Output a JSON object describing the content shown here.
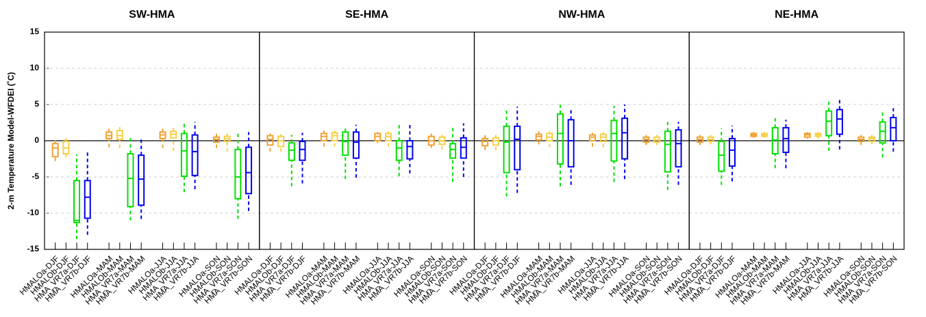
{
  "chart_data": [
    {
      "type": "box",
      "title": "SW-HMA",
      "y_label": "2-m Temperature Model-WFDEI (˚C)",
      "ylim": [
        -15,
        15
      ],
      "yticks": [
        -15,
        -10,
        -5,
        0,
        5,
        10,
        15
      ],
      "grid": true,
      "hline": 0,
      "box_colors": [
        "#f0a030",
        "#f5cf45",
        "#00e000",
        "#0000ee"
      ],
      "categories": [
        "HMALOa-DJF",
        "HMALOb-DJF",
        "HMA_VR7a-DJF",
        "HMA_VR7b-DJF",
        "HMALOa-MAM",
        "HMALOb-MAM",
        "HMA_VR7a-MAM",
        "HMA_VR7b-MAM",
        "HMALOa-JJA",
        "HMALOb-JJA",
        "HMA_VR7a-JJA",
        "HMA_VR7b-JJA",
        "HMALOa-SON",
        "HMALOb-SON",
        "HMA_VR7a-SON",
        "HMA_VR7b-SON"
      ],
      "boxes": [
        [
          -2.8,
          -2.2,
          -1.0,
          -0.4,
          0.5
        ],
        [
          -2.3,
          -1.8,
          -1.0,
          -0.1,
          0.6
        ],
        [
          -13.6,
          -11.3,
          -11.0,
          -5.5,
          -1.9
        ],
        [
          -13.0,
          -10.7,
          -7.8,
          -5.5,
          -1.4
        ],
        [
          -0.9,
          0.3,
          0.7,
          1.2,
          1.8
        ],
        [
          -1.0,
          0.2,
          0.7,
          1.4,
          2.0
        ],
        [
          -11.0,
          -9.1,
          -5.2,
          -1.8,
          0.4
        ],
        [
          -10.8,
          -8.9,
          -5.3,
          -2.0,
          0.3
        ],
        [
          -1.0,
          0.3,
          0.8,
          1.2,
          1.8
        ],
        [
          -1.4,
          0.4,
          0.9,
          1.3,
          1.8
        ],
        [
          -7.1,
          -4.9,
          -1.4,
          1.0,
          2.4
        ],
        [
          -6.7,
          -4.8,
          -1.5,
          0.8,
          2.6
        ],
        [
          -1.0,
          -0.2,
          0.2,
          0.5,
          1.0
        ],
        [
          -1.5,
          -0.1,
          0.3,
          0.6,
          1.0
        ],
        [
          -10.8,
          -8.0,
          -5.0,
          -1.2,
          1.0
        ],
        [
          -9.7,
          -7.3,
          -4.4,
          -0.9,
          1.2
        ]
      ]
    },
    {
      "type": "box",
      "title": "SE-HMA",
      "categories": [
        "HMALOa-DJF",
        "HMALOb-DJF",
        "HMA_VR7a-DJF",
        "HMA_VR7b-DJF",
        "HMALOa-MAM",
        "HMALOb-MAM",
        "HMA_VR7a-MAM",
        "HMA_VR7b-MAM",
        "HMALOa-JJA",
        "HMALOb-JJA",
        "HMA_VR7a-JJA",
        "HMA_VR7b-JJA",
        "HMALOa-SON",
        "HMALOb-SON",
        "HMA_VR7a-SON",
        "HMA_VR7b-SON"
      ],
      "boxes": [
        [
          -1.5,
          -0.6,
          0.2,
          0.7,
          1.0
        ],
        [
          -1.5,
          -0.8,
          0.0,
          0.6,
          0.9
        ],
        [
          -6.3,
          -2.7,
          -1.3,
          -0.3,
          0.8
        ],
        [
          -5.9,
          -2.7,
          -1.2,
          -0.1,
          1.1
        ],
        [
          -0.8,
          0.0,
          0.6,
          1.0,
          1.4
        ],
        [
          -0.8,
          0.0,
          0.7,
          1.1,
          1.4
        ],
        [
          -5.3,
          -2.0,
          -0.1,
          1.2,
          1.9
        ],
        [
          -5.1,
          -2.4,
          -0.2,
          1.2,
          2.2
        ],
        [
          -0.3,
          0.0,
          0.6,
          1.0,
          1.2
        ],
        [
          -0.8,
          0.0,
          0.6,
          1.0,
          1.3
        ],
        [
          -4.9,
          -2.7,
          -1.0,
          0.0,
          2.3
        ],
        [
          -4.5,
          -2.5,
          -0.8,
          0.0,
          2.5
        ],
        [
          -1.0,
          -0.6,
          0.0,
          0.6,
          1.0
        ],
        [
          -1.2,
          -0.5,
          0.0,
          0.5,
          0.8
        ],
        [
          -5.7,
          -2.4,
          -1.2,
          -0.4,
          1.8
        ],
        [
          -5.0,
          -2.4,
          -0.9,
          0.4,
          2.4
        ]
      ]
    },
    {
      "type": "box",
      "title": "NW-HMA",
      "categories": [
        "HMALOa-DJF",
        "HMALOb-DJF",
        "HMA_VR7a-DJF",
        "HMA_VR7b-DJF",
        "HMALOa-MAM",
        "HMALOb-MAM",
        "HMA_VR7a-MAM",
        "HMA_VR7b-MAM",
        "HMALOa-JJA",
        "HMALOb-JJA",
        "HMA_VR7a-JJA",
        "HMA_VR7b-JJA",
        "HMALOa-SON",
        "HMALOb-SON",
        "HMA_VR7a-SON",
        "HMA_VR7b-SON"
      ],
      "boxes": [
        [
          -1.3,
          -0.7,
          -0.1,
          0.3,
          0.8
        ],
        [
          -1.3,
          -0.6,
          0.0,
          0.4,
          0.8
        ],
        [
          -7.7,
          -4.4,
          -0.2,
          2.0,
          4.5
        ],
        [
          -7.2,
          -4.0,
          0.2,
          2.0,
          4.7
        ],
        [
          -0.5,
          0.1,
          0.6,
          0.9,
          1.3
        ],
        [
          -0.9,
          0.0,
          0.5,
          1.0,
          1.3
        ],
        [
          -6.3,
          -3.2,
          1.0,
          3.7,
          5.0
        ],
        [
          -6.1,
          -3.6,
          0.0,
          2.9,
          4.3
        ],
        [
          -0.8,
          0.0,
          0.5,
          0.8,
          1.1
        ],
        [
          -0.9,
          -0.1,
          0.5,
          0.9,
          1.2
        ],
        [
          -5.7,
          -2.8,
          1.0,
          2.8,
          4.8
        ],
        [
          -5.3,
          -2.5,
          1.1,
          3.1,
          5.0
        ],
        [
          -0.6,
          -0.2,
          0.2,
          0.5,
          0.8
        ],
        [
          -0.6,
          -0.2,
          0.1,
          0.5,
          0.8
        ],
        [
          -6.8,
          -4.3,
          -0.5,
          1.3,
          2.6
        ],
        [
          -6.1,
          -3.6,
          -0.4,
          1.5,
          2.6
        ]
      ]
    },
    {
      "type": "box",
      "title": "NE-HMA",
      "categories": [
        "HMALOa-DJF",
        "HMALOb-DJF",
        "HMA_VR7a-DJF",
        "HMA_VR7b-DJF",
        "HMALOa-MAM",
        "HMALOb-MAM",
        "HMA_VR7a-MAM",
        "HMA_VR7b-MAM",
        "HMALOa-JJA",
        "HMALOb-JJA",
        "HMA_VR7a-JJA",
        "HMA_VR7b-JJA",
        "HMALOa-SON",
        "HMALOb-SON",
        "HMA_VR7a-SON",
        "HMA_VR7b-SON"
      ],
      "boxes": [
        [
          -0.6,
          -0.2,
          0.2,
          0.5,
          0.8
        ],
        [
          -0.5,
          -0.1,
          0.2,
          0.5,
          0.8
        ],
        [
          -6.1,
          -4.2,
          -2.0,
          -0.1,
          1.7
        ],
        [
          -5.6,
          -3.5,
          -1.3,
          0.3,
          2.1
        ],
        [
          0.4,
          0.6,
          0.8,
          1.0,
          1.2
        ],
        [
          0.4,
          0.6,
          0.8,
          1.0,
          1.2
        ],
        [
          -3.8,
          -1.8,
          0.1,
          1.8,
          3.3
        ],
        [
          -3.8,
          -1.6,
          0.3,
          1.8,
          2.9
        ],
        [
          0.3,
          0.5,
          0.8,
          1.0,
          1.2
        ],
        [
          0.3,
          0.6,
          0.8,
          1.0,
          1.2
        ],
        [
          -1.4,
          0.7,
          2.7,
          4.1,
          5.4
        ],
        [
          -1.2,
          0.9,
          3.0,
          4.3,
          6.0
        ],
        [
          -0.6,
          -0.1,
          0.2,
          0.5,
          0.8
        ],
        [
          -0.5,
          -0.1,
          0.3,
          0.5,
          0.8
        ],
        [
          -2.3,
          -0.3,
          1.3,
          2.6,
          4.0
        ],
        [
          -1.5,
          0.0,
          1.8,
          3.2,
          4.5
        ]
      ]
    }
  ]
}
